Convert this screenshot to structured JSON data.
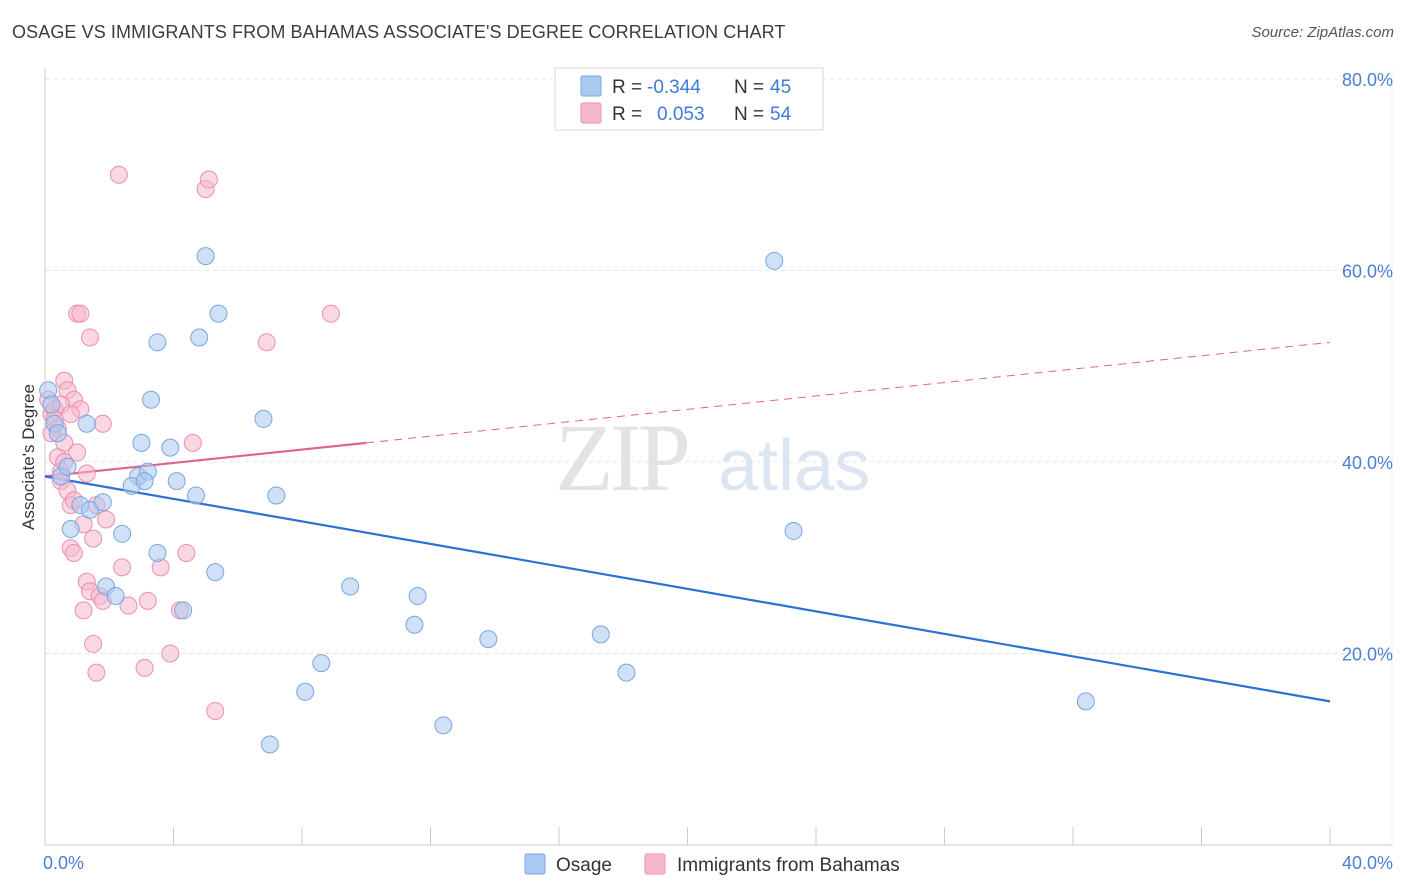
{
  "title": "OSAGE VS IMMIGRANTS FROM BAHAMAS ASSOCIATE'S DEGREE CORRELATION CHART",
  "source": "Source: ZipAtlas.com",
  "colors": {
    "osage_fill": "#aac8f0",
    "osage_stroke": "#7aa6e0",
    "osage_line": "#2b72d4",
    "bahamas_fill": "#f6b8cc",
    "bahamas_stroke": "#ec8fb0",
    "bahamas_line": "#e0628f",
    "axis_text": "#4a7fd4"
  },
  "legend": {
    "rows": [
      {
        "r_label": "R =",
        "r_value": "-0.344",
        "n_label": "N =",
        "n_value": "45"
      },
      {
        "r_label": "R =",
        "r_value": "0.053",
        "n_label": "N =",
        "n_value": "54"
      }
    ]
  },
  "bottom_legend": [
    "Osage",
    "Immigrants from Bahamas"
  ],
  "chart_data": {
    "type": "scatter",
    "title": "OSAGE VS IMMIGRANTS FROM BAHAMAS ASSOCIATE'S DEGREE CORRELATION CHART",
    "xlabel": "",
    "ylabel": "Associate's Degree",
    "xlim": [
      0,
      40
    ],
    "ylim": [
      0,
      80
    ],
    "x_tick_labels": [
      "0.0%",
      "40.0%"
    ],
    "y_ticks": [
      20,
      40,
      60,
      80
    ],
    "y_tick_labels": [
      "20.0%",
      "40.0%",
      "60.0%",
      "80.0%"
    ],
    "grid": true,
    "legend_position": "top-center",
    "watermark": "ZIPatlas",
    "series": [
      {
        "name": "Osage",
        "r": -0.344,
        "n": 45,
        "trend": {
          "x0": 0.0,
          "y0": 38.5,
          "x1": 40.0,
          "y1": 15.0,
          "solid_until": 40.0
        },
        "points": [
          [
            0.1,
            47.5
          ],
          [
            0.2,
            46.0
          ],
          [
            0.3,
            44.0
          ],
          [
            0.4,
            43.0
          ],
          [
            0.5,
            38.5
          ],
          [
            0.7,
            39.5
          ],
          [
            0.8,
            33.0
          ],
          [
            1.1,
            35.5
          ],
          [
            1.4,
            35.0
          ],
          [
            1.8,
            35.8
          ],
          [
            1.9,
            27.0
          ],
          [
            2.2,
            26.0
          ],
          [
            2.4,
            32.5
          ],
          [
            2.9,
            38.5
          ],
          [
            3.0,
            42.0
          ],
          [
            3.2,
            39.0
          ],
          [
            2.7,
            37.5
          ],
          [
            3.1,
            38.0
          ],
          [
            3.3,
            46.5
          ],
          [
            3.5,
            52.5
          ],
          [
            3.5,
            30.5
          ],
          [
            3.9,
            41.5
          ],
          [
            4.1,
            38.0
          ],
          [
            4.3,
            24.5
          ],
          [
            4.7,
            36.5
          ],
          [
            4.8,
            53.0
          ],
          [
            5.0,
            61.5
          ],
          [
            5.3,
            28.5
          ],
          [
            5.4,
            55.5
          ],
          [
            6.8,
            44.5
          ],
          [
            7.0,
            10.5
          ],
          [
            7.2,
            36.5
          ],
          [
            8.1,
            16.0
          ],
          [
            8.6,
            19.0
          ],
          [
            9.5,
            27.0
          ],
          [
            11.5,
            23.0
          ],
          [
            11.6,
            26.0
          ],
          [
            12.4,
            12.5
          ],
          [
            13.8,
            21.5
          ],
          [
            17.3,
            22.0
          ],
          [
            18.1,
            18.0
          ],
          [
            22.7,
            61.0
          ],
          [
            23.3,
            32.8
          ],
          [
            32.4,
            15.0
          ],
          [
            1.3,
            44.0
          ]
        ]
      },
      {
        "name": "Immigrants from Bahamas",
        "r": 0.053,
        "n": 54,
        "trend": {
          "x0": 0.0,
          "y0": 38.5,
          "x1": 40.0,
          "y1": 52.5,
          "solid_until": 10.0
        },
        "points": [
          [
            0.1,
            46.5
          ],
          [
            0.2,
            45.0
          ],
          [
            0.3,
            45.5
          ],
          [
            0.3,
            44.5
          ],
          [
            0.4,
            43.5
          ],
          [
            0.4,
            40.5
          ],
          [
            0.5,
            39.0
          ],
          [
            0.5,
            38.0
          ],
          [
            0.6,
            48.5
          ],
          [
            0.6,
            42.0
          ],
          [
            0.7,
            47.5
          ],
          [
            0.7,
            37.0
          ],
          [
            0.8,
            35.5
          ],
          [
            0.8,
            31.0
          ],
          [
            0.9,
            46.5
          ],
          [
            0.9,
            36.0
          ],
          [
            0.9,
            30.5
          ],
          [
            1.0,
            55.5
          ],
          [
            1.1,
            55.5
          ],
          [
            1.1,
            45.5
          ],
          [
            1.2,
            33.5
          ],
          [
            1.2,
            24.5
          ],
          [
            1.3,
            38.8
          ],
          [
            1.3,
            27.5
          ],
          [
            1.4,
            26.5
          ],
          [
            1.4,
            53.0
          ],
          [
            1.5,
            32.0
          ],
          [
            1.5,
            21.0
          ],
          [
            1.6,
            18.0
          ],
          [
            1.6,
            35.5
          ],
          [
            1.7,
            26.0
          ],
          [
            1.8,
            44.0
          ],
          [
            1.8,
            25.5
          ],
          [
            1.9,
            34.0
          ],
          [
            2.3,
            70.0
          ],
          [
            2.4,
            29.0
          ],
          [
            3.1,
            18.5
          ],
          [
            3.2,
            25.5
          ],
          [
            3.6,
            29.0
          ],
          [
            3.9,
            20.0
          ],
          [
            4.2,
            24.5
          ],
          [
            4.4,
            30.5
          ],
          [
            4.6,
            42.0
          ],
          [
            5.0,
            68.5
          ],
          [
            5.1,
            69.5
          ],
          [
            5.3,
            14.0
          ],
          [
            6.9,
            52.5
          ],
          [
            8.9,
            55.5
          ],
          [
            0.2,
            43.0
          ],
          [
            0.5,
            46.0
          ],
          [
            0.8,
            45.0
          ],
          [
            1.0,
            41.0
          ],
          [
            2.6,
            25.0
          ],
          [
            0.6,
            40.0
          ]
        ]
      }
    ]
  }
}
